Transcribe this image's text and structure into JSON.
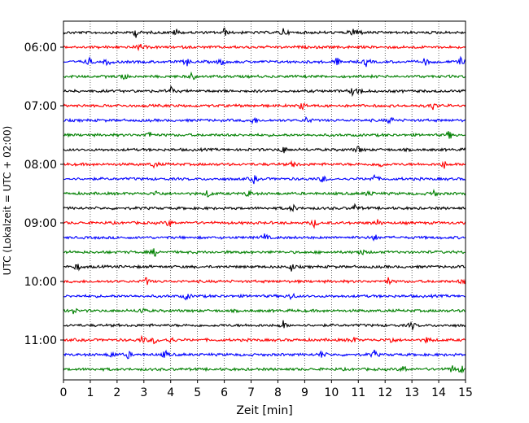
{
  "chart_data": {
    "type": "line",
    "title": "",
    "xlabel": "Zeit  [min]",
    "ylabel": "UTC (Lokalzeit = UTC + 02:00)",
    "xlim": [
      0,
      15
    ],
    "x_ticks": [
      "0",
      "1",
      "2",
      "3",
      "4",
      "5",
      "6",
      "7",
      "8",
      "9",
      "10",
      "11",
      "12",
      "13",
      "14",
      "15"
    ],
    "y_tick_labels": [
      "06:00",
      "07:00",
      "08:00",
      "09:00",
      "10:00",
      "11:00"
    ],
    "grid": "vertical dotted lines at each minute",
    "trace_start_utc": "05:45",
    "trace_interval_minutes": 15,
    "trace_color_cycle": [
      "#000000",
      "#ff0000",
      "#0000ff",
      "#008000"
    ],
    "traces": [
      {
        "start": "05:45",
        "color": "#000000",
        "events": [
          2.7,
          4.2,
          6.0,
          8.2,
          10.8,
          11.0
        ]
      },
      {
        "start": "06:00",
        "color": "#ff0000",
        "events": [
          2.85
        ]
      },
      {
        "start": "06:15",
        "color": "#0000ff",
        "events": [
          0.95,
          1.65,
          4.6,
          5.9,
          10.2,
          11.3,
          13.5,
          14.8
        ]
      },
      {
        "start": "06:30",
        "color": "#008000",
        "events": [
          2.25,
          4.8
        ]
      },
      {
        "start": "06:45",
        "color": "#000000",
        "events": [
          4.0,
          10.8,
          11.05
        ]
      },
      {
        "start": "07:00",
        "color": "#ff0000",
        "events": [
          8.9,
          13.8
        ]
      },
      {
        "start": "07:15",
        "color": "#0000ff",
        "events": [
          7.1,
          9.1,
          12.2
        ]
      },
      {
        "start": "07:30",
        "color": "#008000",
        "events": [
          3.2,
          14.4
        ]
      },
      {
        "start": "07:45",
        "color": "#000000",
        "events": [
          8.2,
          11.0
        ]
      },
      {
        "start": "08:00",
        "color": "#ff0000",
        "events": [
          3.4,
          8.6,
          11.8,
          14.2
        ]
      },
      {
        "start": "08:15",
        "color": "#0000ff",
        "events": [
          7.1,
          9.7,
          11.6
        ]
      },
      {
        "start": "08:30",
        "color": "#008000",
        "events": [
          3.5,
          5.4,
          6.9,
          11.4,
          13.8
        ]
      },
      {
        "start": "08:45",
        "color": "#000000",
        "events": [
          8.55,
          10.9
        ]
      },
      {
        "start": "09:00",
        "color": "#ff0000",
        "events": [
          3.95,
          9.35,
          11.7
        ]
      },
      {
        "start": "09:15",
        "color": "#0000ff",
        "events": [
          7.5,
          11.6
        ]
      },
      {
        "start": "09:30",
        "color": "#008000",
        "events": [
          3.4,
          11.1
        ]
      },
      {
        "start": "09:45",
        "color": "#000000",
        "events": [
          0.5,
          8.5
        ]
      },
      {
        "start": "10:00",
        "color": "#ff0000",
        "events": [
          3.1,
          12.1,
          14.9
        ]
      },
      {
        "start": "10:15",
        "color": "#0000ff",
        "events": [
          4.6,
          8.5
        ]
      },
      {
        "start": "10:30",
        "color": "#008000",
        "events": [
          0.35,
          2.9
        ]
      },
      {
        "start": "10:45",
        "color": "#000000",
        "events": [
          8.2,
          13.0
        ]
      },
      {
        "start": "11:00",
        "color": "#ff0000",
        "events": [
          2.95,
          3.4,
          4.0,
          10.8,
          12.2,
          13.6
        ]
      },
      {
        "start": "11:15",
        "color": "#0000ff",
        "events": [
          1.8,
          2.4,
          3.8,
          9.65,
          11.6
        ]
      },
      {
        "start": "11:30",
        "color": "#008000",
        "events": [
          12.7,
          14.5,
          14.85
        ]
      }
    ]
  }
}
